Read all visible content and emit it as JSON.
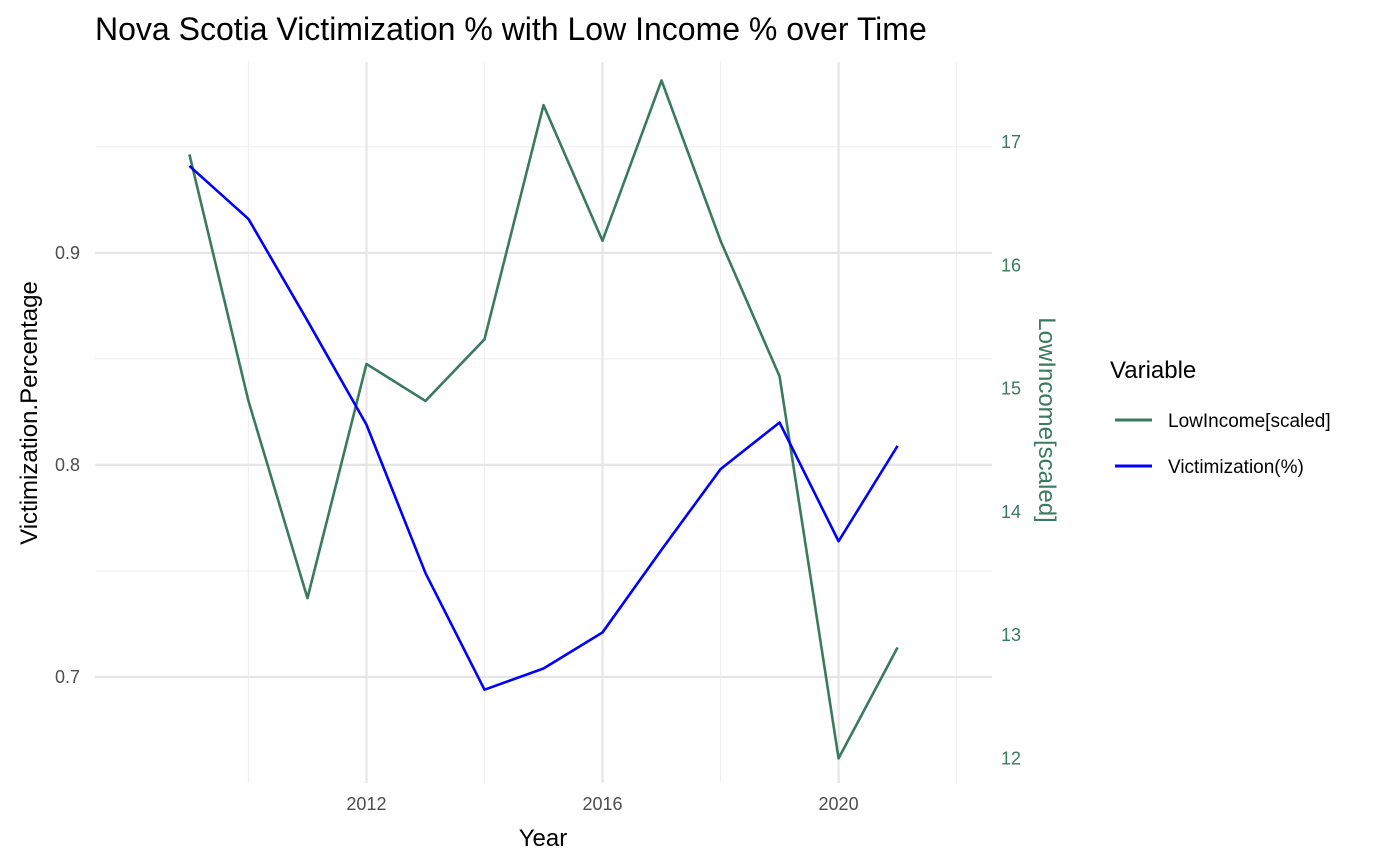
{
  "chart_data": {
    "type": "line",
    "title": "Nova Scotia Victimization % with Low Income % over Time",
    "xlabel": "Year",
    "ylabel": "Victimization.Percentage",
    "ylabel_right": "LowIncome[scaled]",
    "x": [
      2009,
      2010,
      2011,
      2012,
      2013,
      2014,
      2015,
      2016,
      2017,
      2018,
      2019,
      2020,
      2021
    ],
    "x_ticks": [
      2012,
      2016,
      2020
    ],
    "y_ticks": [
      0.7,
      0.8,
      0.9
    ],
    "y_right_ticks": [
      12,
      13,
      14,
      15,
      16,
      17
    ],
    "xlim": [
      2007.4,
      2022.6
    ],
    "ylim": [
      0.65,
      0.99
    ],
    "ylim_right": [
      11.8,
      17.65
    ],
    "grid": true,
    "legend_position": "right",
    "legend_title": "Variable",
    "series": [
      {
        "name": "LowIncome[scaled]",
        "axis": "right",
        "color": "#3a7a5e",
        "values": [
          16.9,
          14.9,
          13.3,
          15.2,
          14.9,
          15.4,
          17.3,
          16.2,
          17.5,
          16.2,
          15.1,
          12.0,
          12.9
        ]
      },
      {
        "name": "Victimization(%)",
        "axis": "left",
        "color": "#0000ff",
        "values": [
          0.941,
          0.916,
          0.868,
          0.819,
          0.749,
          0.694,
          0.704,
          0.721,
          0.76,
          0.798,
          0.82,
          0.764,
          0.809
        ]
      }
    ]
  }
}
